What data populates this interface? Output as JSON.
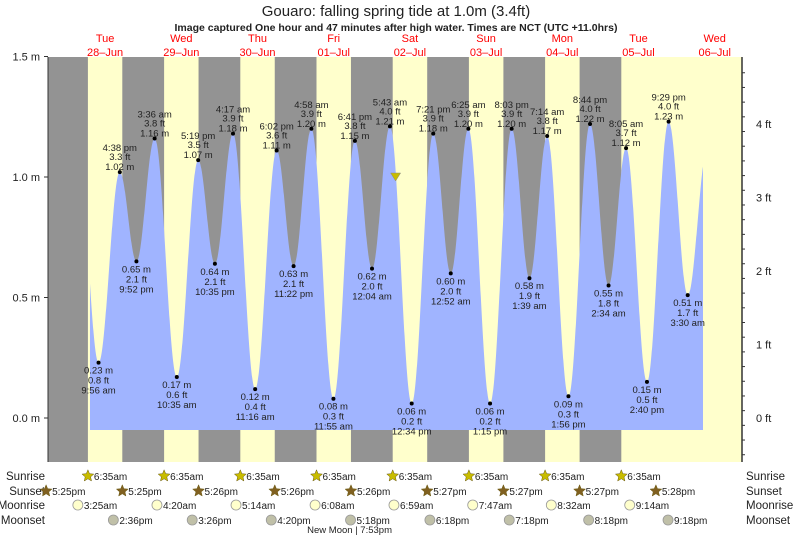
{
  "title": "Gouaro: falling  spring tide at 1.0m (3.4ft)",
  "subtitle": "Image captured One hour and 47 minutes after high water. Times are NCT (UTC +11.0hrs)",
  "colors": {
    "night": "#939393",
    "day": "#ffffcc",
    "water": "#a0b4ff",
    "day_label": "#ff0000",
    "sunrise": "#c8bc00",
    "sunset": "#806020",
    "moonrise": "#ffffcc",
    "moonset": "#c0c0a8",
    "current_marker": "#c8bc00"
  },
  "chart_data": {
    "type": "area",
    "left_axis": {
      "unit": "m",
      "ticks": [
        "0.0 m",
        "0.5 m",
        "1.0 m",
        "1.5 m"
      ],
      "range_m": [
        -0.15,
        1.5
      ]
    },
    "right_axis": {
      "unit": "ft",
      "ticks": [
        "0 ft",
        "1 ft",
        "2 ft",
        "3 ft",
        "4 ft"
      ]
    },
    "days": [
      {
        "day": "Tue",
        "date": "28–Jun"
      },
      {
        "day": "Wed",
        "date": "29–Jun"
      },
      {
        "day": "Thu",
        "date": "30–Jun"
      },
      {
        "day": "Fri",
        "date": "01–Jul"
      },
      {
        "day": "Sat",
        "date": "02–Jul"
      },
      {
        "day": "Sun",
        "date": "03–Jul"
      },
      {
        "day": "Mon",
        "date": "04–Jul"
      },
      {
        "day": "Tue",
        "date": "05–Jul"
      },
      {
        "day": "Wed",
        "date": "06–Jul"
      }
    ],
    "extremes": [
      {
        "date": "28-Jun",
        "time": "9:56 am",
        "m": "0.23 m",
        "ft": "0.8 ft",
        "type": "low",
        "value": 0.23
      },
      {
        "date": "28-Jun",
        "time": "4:38 pm",
        "m": "1.02 m",
        "ft": "3.3 ft",
        "type": "high",
        "value": 1.02
      },
      {
        "date": "28-Jun",
        "time": "9:52 pm",
        "m": "0.65 m",
        "ft": "2.1 ft",
        "type": "low",
        "value": 0.65
      },
      {
        "date": "29-Jun",
        "time": "3:36 am",
        "m": "1.16 m",
        "ft": "3.8 ft",
        "type": "high",
        "value": 1.16
      },
      {
        "date": "29-Jun",
        "time": "10:35 am",
        "m": "0.17 m",
        "ft": "0.6 ft",
        "type": "low",
        "value": 0.17
      },
      {
        "date": "29-Jun",
        "time": "5:19 pm",
        "m": "1.07 m",
        "ft": "3.5 ft",
        "type": "high",
        "value": 1.07
      },
      {
        "date": "29-Jun",
        "time": "10:35 pm",
        "m": "0.64 m",
        "ft": "2.1 ft",
        "type": "low",
        "value": 0.64
      },
      {
        "date": "30-Jun",
        "time": "4:17 am",
        "m": "1.18 m",
        "ft": "3.9 ft",
        "type": "high",
        "value": 1.18
      },
      {
        "date": "30-Jun",
        "time": "11:16 am",
        "m": "0.12 m",
        "ft": "0.4 ft",
        "type": "low",
        "value": 0.12
      },
      {
        "date": "30-Jun",
        "time": "6:02 pm",
        "m": "1.11 m",
        "ft": "3.6 ft",
        "type": "high",
        "value": 1.11
      },
      {
        "date": "30-Jun",
        "time": "11:22 pm",
        "m": "0.63 m",
        "ft": "2.1 ft",
        "type": "low",
        "value": 0.63
      },
      {
        "date": "01-Jul",
        "time": "4:58 am",
        "m": "1.20 m",
        "ft": "3.9 ft",
        "type": "high",
        "value": 1.2
      },
      {
        "date": "01-Jul",
        "time": "11:55 am",
        "m": "0.08 m",
        "ft": "0.3 ft",
        "type": "low",
        "value": 0.08
      },
      {
        "date": "01-Jul",
        "time": "6:41 pm",
        "m": "1.15 m",
        "ft": "3.8 ft",
        "type": "high",
        "value": 1.15
      },
      {
        "date": "02-Jul",
        "time": "12:04 am",
        "m": "0.62 m",
        "ft": "2.0 ft",
        "type": "low",
        "value": 0.62
      },
      {
        "date": "02-Jul",
        "time": "5:43 am",
        "m": "1.21 m",
        "ft": "4.0 ft",
        "type": "high",
        "value": 1.21
      },
      {
        "date": "02-Jul",
        "time": "12:34 pm",
        "m": "0.06 m",
        "ft": "0.2 ft",
        "type": "low",
        "value": 0.06
      },
      {
        "date": "02-Jul",
        "time": "7:21 pm",
        "m": "1.18 m",
        "ft": "3.9 ft",
        "type": "high",
        "value": 1.18
      },
      {
        "date": "03-Jul",
        "time": "12:52 am",
        "m": "0.60 m",
        "ft": "2.0 ft",
        "type": "low",
        "value": 0.6
      },
      {
        "date": "03-Jul",
        "time": "6:25 am",
        "m": "1.20 m",
        "ft": "3.9 ft",
        "type": "high",
        "value": 1.2
      },
      {
        "date": "03-Jul",
        "time": "1:15 pm",
        "m": "0.06 m",
        "ft": "0.2 ft",
        "type": "low",
        "value": 0.06
      },
      {
        "date": "03-Jul",
        "time": "8:03 pm",
        "m": "1.20 m",
        "ft": "3.9 ft",
        "type": "high",
        "value": 1.2
      },
      {
        "date": "04-Jul",
        "time": "1:39 am",
        "m": "0.58 m",
        "ft": "1.9 ft",
        "type": "low",
        "value": 0.58
      },
      {
        "date": "04-Jul",
        "time": "7:14 am",
        "m": "1.17 m",
        "ft": "3.8 ft",
        "type": "high",
        "value": 1.17
      },
      {
        "date": "04-Jul",
        "time": "1:56 pm",
        "m": "0.09 m",
        "ft": "0.3 ft",
        "type": "low",
        "value": 0.09
      },
      {
        "date": "04-Jul",
        "time": "8:44 pm",
        "m": "1.22 m",
        "ft": "4.0 ft",
        "type": "high",
        "value": 1.22
      },
      {
        "date": "05-Jul",
        "time": "2:34 am",
        "m": "0.55 m",
        "ft": "1.8 ft",
        "type": "low",
        "value": 0.55
      },
      {
        "date": "05-Jul",
        "time": "8:05 am",
        "m": "1.12 m",
        "ft": "3.7 ft",
        "type": "high",
        "value": 1.12
      },
      {
        "date": "05-Jul",
        "time": "2:40 pm",
        "m": "0.15 m",
        "ft": "0.5 ft",
        "type": "low",
        "value": 0.15
      },
      {
        "date": "05-Jul",
        "time": "9:29 pm",
        "m": "1.23 m",
        "ft": "4.0 ft",
        "type": "high",
        "value": 1.23
      },
      {
        "date": "06-Jul",
        "time": "3:30 am",
        "m": "0.51 m",
        "ft": "1.7 ft",
        "type": "low",
        "value": 0.51
      }
    ],
    "current": {
      "date": "02-Jul",
      "time": "7:30 am",
      "value_m": 1.0
    }
  },
  "astro": {
    "row_labels": {
      "sunrise": "Sunrise",
      "sunset": "Sunset",
      "moonrise": "Moonrise",
      "moonset": "Moonset"
    },
    "sunrise": [
      {
        "date": "28-Jun",
        "time": "6:35am"
      },
      {
        "date": "29-Jun",
        "time": "6:35am"
      },
      {
        "date": "30-Jun",
        "time": "6:35am"
      },
      {
        "date": "01-Jul",
        "time": "6:35am"
      },
      {
        "date": "02-Jul",
        "time": "6:35am"
      },
      {
        "date": "03-Jul",
        "time": "6:35am"
      },
      {
        "date": "04-Jul",
        "time": "6:35am"
      },
      {
        "date": "05-Jul",
        "time": "6:35am"
      }
    ],
    "sunset": [
      {
        "date": "27-Jun",
        "time": "5:25pm"
      },
      {
        "date": "28-Jun",
        "time": "5:25pm"
      },
      {
        "date": "29-Jun",
        "time": "5:26pm"
      },
      {
        "date": "30-Jun",
        "time": "5:26pm"
      },
      {
        "date": "01-Jul",
        "time": "5:26pm"
      },
      {
        "date": "02-Jul",
        "time": "5:27pm"
      },
      {
        "date": "03-Jul",
        "time": "5:27pm"
      },
      {
        "date": "04-Jul",
        "time": "5:27pm"
      },
      {
        "date": "05-Jul",
        "time": "5:28pm"
      }
    ],
    "moonrise": [
      {
        "date": "28-Jun",
        "time": "3:25am"
      },
      {
        "date": "29-Jun",
        "time": "4:20am"
      },
      {
        "date": "30-Jun",
        "time": "5:14am"
      },
      {
        "date": "01-Jul",
        "time": "6:08am"
      },
      {
        "date": "02-Jul",
        "time": "6:59am"
      },
      {
        "date": "03-Jul",
        "time": "7:47am"
      },
      {
        "date": "04-Jul",
        "time": "8:32am"
      },
      {
        "date": "05-Jul",
        "time": "9:14am"
      }
    ],
    "moonset": [
      {
        "date": "28-Jun",
        "time": "2:36pm"
      },
      {
        "date": "29-Jun",
        "time": "3:26pm"
      },
      {
        "date": "30-Jun",
        "time": "4:20pm"
      },
      {
        "date": "01-Jul",
        "time": "5:18pm"
      },
      {
        "date": "02-Jul",
        "time": "6:18pm"
      },
      {
        "date": "03-Jul",
        "time": "7:18pm"
      },
      {
        "date": "04-Jul",
        "time": "8:18pm"
      },
      {
        "date": "05-Jul",
        "time": "9:18pm"
      }
    ],
    "moon_phase": "New Moon | 7:53pm"
  }
}
